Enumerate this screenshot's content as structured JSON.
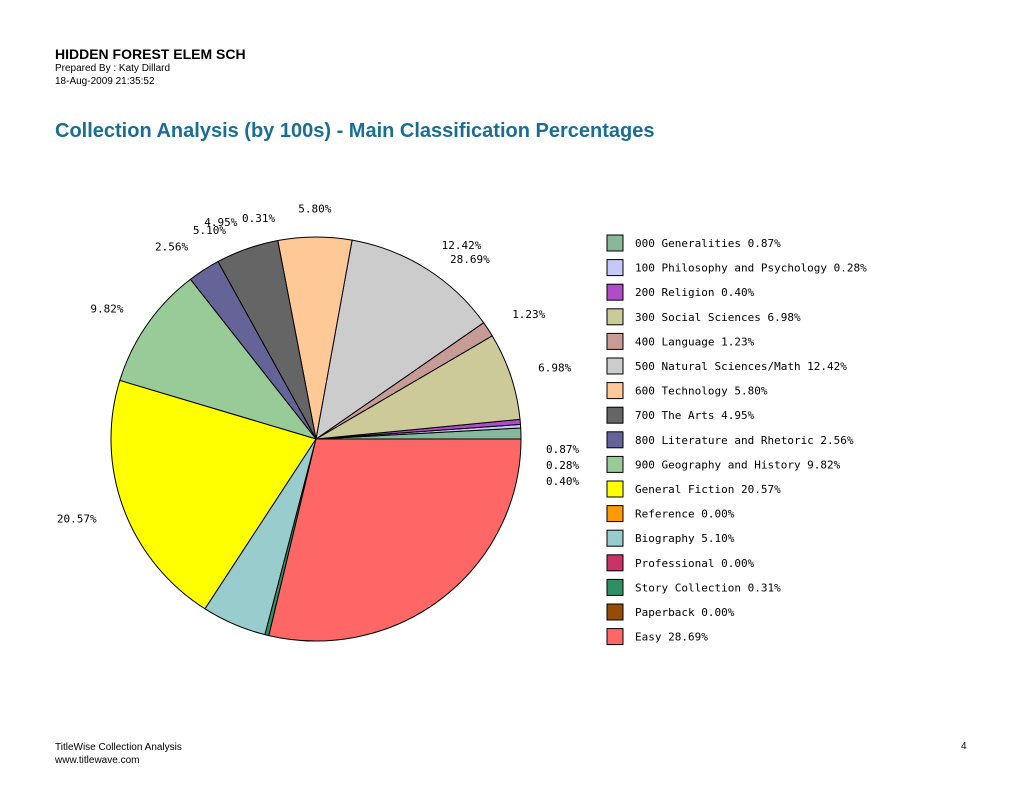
{
  "header": {
    "school": "HIDDEN FOREST ELEM SCH",
    "prepared_by": "Prepared By : Katy Dillard",
    "timestamp": "18-Aug-2009 21:35:52"
  },
  "report_title": "Collection Analysis (by 100s) - Main Classification Percentages",
  "footer": {
    "product": "TitleWise Collection Analysis",
    "url": "www.titlewave.com",
    "page": "4"
  },
  "chart_data": {
    "type": "pie",
    "title": "",
    "legend_position": "right",
    "slices": [
      {
        "legend": "000 Generalities 0.87%",
        "label": "0.87%",
        "value": 0.87,
        "color": "#87b89a"
      },
      {
        "legend": "100 Philosophy and Psychology 0.28%",
        "label": "0.28%",
        "value": 0.28,
        "color": "#c6c8f5"
      },
      {
        "legend": "200 Religion 0.40%",
        "label": "0.40%",
        "value": 0.4,
        "color": "#b04cc7"
      },
      {
        "legend": "300 Social Sciences 6.98%",
        "label": "6.98%",
        "value": 6.98,
        "color": "#cbca98"
      },
      {
        "legend": "400 Language 1.23%",
        "label": "1.23%",
        "value": 1.23,
        "color": "#c79c96"
      },
      {
        "legend": "500 Natural Sciences/Math 12.42%",
        "label": "12.42%",
        "value": 12.42,
        "color": "#cccccc"
      },
      {
        "legend": "600 Technology 5.80%",
        "label": "5.80%",
        "value": 5.8,
        "color": "#fec996"
      },
      {
        "legend": "700 The Arts 4.95%",
        "label": "4.95%",
        "value": 4.95,
        "color": "#656565"
      },
      {
        "legend": "800 Literature and Rhetoric 2.56%",
        "label": "2.56%",
        "value": 2.56,
        "color": "#646499"
      },
      {
        "legend": "900 Geography and History 9.82%",
        "label": "9.82%",
        "value": 9.82,
        "color": "#98cb98"
      },
      {
        "legend": "General Fiction 20.57%",
        "label": "20.57%",
        "value": 20.57,
        "color": "#ffff00"
      },
      {
        "legend": "Reference 0.00%",
        "label": "",
        "value": 0.0,
        "color": "#fc9a05"
      },
      {
        "legend": "Biography 5.10%",
        "label": "5.10%",
        "value": 5.1,
        "color": "#99cccc"
      },
      {
        "legend": "Professional 0.00%",
        "label": "",
        "value": 0.0,
        "color": "#c8336a"
      },
      {
        "legend": "Story Collection 0.31%",
        "label": "0.31%",
        "value": 0.31,
        "color": "#2f8f64"
      },
      {
        "legend": "Paperback 0.00%",
        "label": "",
        "value": 0.0,
        "color": "#954c06"
      },
      {
        "legend": "Easy 28.69%",
        "label": "28.69%",
        "value": 28.69,
        "color": "#ff6666"
      }
    ]
  }
}
